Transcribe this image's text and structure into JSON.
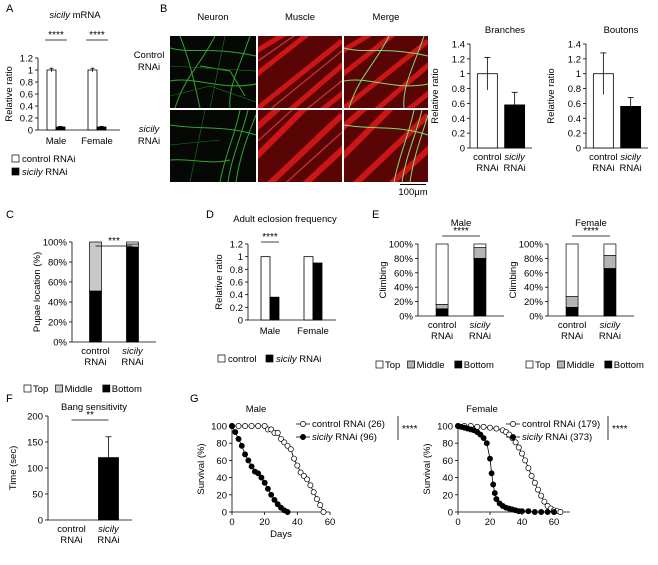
{
  "panel_letters": [
    "A",
    "B",
    "C",
    "D",
    "E",
    "F",
    "G"
  ],
  "micrograph": {
    "columns": [
      "Neuron",
      "Muscle",
      "Merge"
    ],
    "rows": [
      {
        "line1": "Control",
        "line2": "RNAi",
        "italic": false
      },
      {
        "line1": "sicily",
        "line2": "RNAi",
        "italic": true
      }
    ],
    "scale_bar": "100μm",
    "colors": {
      "neuron": "#1f7a1f",
      "muscle": "#c81414",
      "background": "#000000"
    }
  },
  "chart_data": [
    {
      "id": "A",
      "type": "bar",
      "title": "sicily mRNA",
      "ylabel": "Relative ratio",
      "ylim": [
        0,
        1.2
      ],
      "yticks": [
        "0",
        "0.2",
        "0.4",
        "0.6",
        "0.8",
        "1",
        "1.2"
      ],
      "categories": [
        "Male",
        "Female"
      ],
      "series": [
        {
          "name": "control RNAi",
          "color": "#ffffff",
          "values": [
            1.0,
            1.0
          ],
          "errors": [
            0.03,
            0.03
          ]
        },
        {
          "name": "sicily RNAi",
          "color": "#000000",
          "values": [
            0.05,
            0.05
          ],
          "errors": [
            0.01,
            0.01
          ]
        }
      ],
      "significance": [
        "****",
        "****"
      ],
      "legend": [
        "control RNAi",
        "sicily RNAi"
      ]
    },
    {
      "id": "B1",
      "type": "bar",
      "title": "Branches",
      "ylabel": "Relative ratio",
      "ylim": [
        0,
        1.4
      ],
      "yticks": [
        "0",
        "0.2",
        "0.4",
        "0.6",
        "0.8",
        "1",
        "1.2",
        "1.4"
      ],
      "categories": [
        "control|RNAi",
        "sicily|RNAi"
      ],
      "values": [
        1.0,
        0.58
      ],
      "errors": [
        0.22,
        0.17
      ],
      "colors": [
        "#ffffff",
        "#000000"
      ]
    },
    {
      "id": "B2",
      "type": "bar",
      "title": "Boutons",
      "ylabel": "Relative ratio",
      "ylim": [
        0,
        1.4
      ],
      "yticks": [
        "0",
        "0.2",
        "0.4",
        "0.6",
        "0.8",
        "1",
        "1.2",
        "1.4"
      ],
      "categories": [
        "control|RNAi",
        "sicily|RNAi"
      ],
      "values": [
        1.0,
        0.56
      ],
      "errors": [
        0.28,
        0.12
      ],
      "colors": [
        "#ffffff",
        "#000000"
      ]
    },
    {
      "id": "C",
      "type": "bar",
      "stacked": true,
      "ylabel": "Pupae location (%)",
      "ylim": [
        0,
        100
      ],
      "yticks": [
        "0%",
        "20%",
        "40%",
        "60%",
        "80%",
        "100%"
      ],
      "categories": [
        "control|RNAi",
        "sicily|RNAi"
      ],
      "series": [
        {
          "name": "Bottom",
          "color": "#000000",
          "values": [
            51,
            95
          ]
        },
        {
          "name": "Middle",
          "color": "#c8c8c8",
          "values": [
            49,
            3
          ]
        },
        {
          "name": "Top",
          "color": "#ffffff",
          "values": [
            0,
            2
          ]
        }
      ],
      "significance": "***",
      "legend": [
        "Top",
        "Middle",
        "Bottom"
      ]
    },
    {
      "id": "D",
      "type": "bar",
      "title": "Adult eclosion frequency",
      "ylabel": "Relative ratio",
      "ylim": [
        0,
        1.2
      ],
      "yticks": [
        "0",
        "0.2",
        "0.4",
        "0.6",
        "0.8",
        "1",
        "1.2"
      ],
      "categories": [
        "Male",
        "Female"
      ],
      "series": [
        {
          "name": "control",
          "color": "#ffffff",
          "values": [
            1.0,
            1.0
          ]
        },
        {
          "name": "sicily RNAi",
          "color": "#000000",
          "values": [
            0.36,
            0.9
          ]
        }
      ],
      "significance": [
        "****"
      ],
      "legend": [
        "control",
        "sicily RNAi"
      ]
    },
    {
      "id": "E1",
      "type": "bar",
      "stacked": true,
      "title": "Male",
      "ylabel": "Climbing",
      "ylim": [
        0,
        100
      ],
      "yticks": [
        "0%",
        "20%",
        "40%",
        "60%",
        "80%",
        "100%"
      ],
      "categories": [
        "control|RNAi",
        "sicily|RNAi"
      ],
      "series": [
        {
          "name": "Bottom",
          "color": "#000000",
          "values": [
            10,
            80
          ]
        },
        {
          "name": "Middle",
          "color": "#b4b4b4",
          "values": [
            6,
            15
          ]
        },
        {
          "name": "Top",
          "color": "#ffffff",
          "values": [
            84,
            5
          ]
        }
      ],
      "significance": "****",
      "legend": [
        "Top",
        "Middle",
        "Bottom"
      ]
    },
    {
      "id": "E2",
      "type": "bar",
      "stacked": true,
      "title": "Female",
      "ylabel": "Climbing",
      "ylim": [
        0,
        100
      ],
      "yticks": [
        "0%",
        "20%",
        "40%",
        "60%",
        "80%",
        "100%"
      ],
      "categories": [
        "control|RNAi",
        "sicily|RNAi"
      ],
      "series": [
        {
          "name": "Bottom",
          "color": "#000000",
          "values": [
            12,
            66
          ]
        },
        {
          "name": "Middle",
          "color": "#b4b4b4",
          "values": [
            15,
            18
          ]
        },
        {
          "name": "Top",
          "color": "#ffffff",
          "values": [
            73,
            16
          ]
        }
      ],
      "significance": "****",
      "legend": [
        "Top",
        "Middle",
        "Bottom"
      ]
    },
    {
      "id": "F",
      "type": "bar",
      "title": "Bang sensitivity",
      "ylabel": "Time (sec)",
      "ylim": [
        0,
        200
      ],
      "yticks": [
        "0",
        "50",
        "100",
        "150",
        "200"
      ],
      "categories": [
        "control|RNAi",
        "sicily|RNAi"
      ],
      "values": [
        0,
        120
      ],
      "errors": [
        0,
        40
      ],
      "colors": [
        "#ffffff",
        "#000000"
      ],
      "significance": "**"
    },
    {
      "id": "G1",
      "type": "line",
      "title": "Male",
      "xlabel": "Days",
      "ylabel": "Survival (%)",
      "xlim": [
        0,
        60
      ],
      "ylim": [
        0,
        100
      ],
      "xticks": [
        "0",
        "20",
        "40",
        "60"
      ],
      "yticks": [
        "0",
        "20",
        "40",
        "60",
        "80",
        "100"
      ],
      "series": [
        {
          "name": "control RNAi (26)",
          "marker": "open",
          "x": [
            0,
            4,
            8,
            12,
            16,
            20,
            22,
            24,
            26,
            28,
            30,
            32,
            34,
            36,
            38,
            40,
            42,
            44,
            46,
            48,
            50,
            52,
            54,
            56
          ],
          "y": [
            100,
            100,
            100,
            100,
            100,
            100,
            96,
            96,
            92,
            92,
            85,
            81,
            77,
            73,
            62,
            54,
            46,
            42,
            38,
            31,
            23,
            15,
            8,
            0
          ]
        },
        {
          "name": "sicily RNAi (96)",
          "marker": "filled",
          "x": [
            0,
            2,
            4,
            6,
            8,
            10,
            12,
            14,
            16,
            18,
            20,
            22,
            24,
            26,
            28,
            30,
            32,
            34
          ],
          "y": [
            100,
            93,
            85,
            77,
            67,
            60,
            53,
            47,
            45,
            40,
            34,
            27,
            20,
            14,
            9,
            5,
            2,
            0
          ]
        }
      ],
      "significance": "****"
    },
    {
      "id": "G2",
      "type": "line",
      "title": "Female",
      "ylabel": "Survival (%)",
      "xlim": [
        0,
        70
      ],
      "ylim": [
        0,
        100
      ],
      "xticks": [
        "0",
        "20",
        "40",
        "60"
      ],
      "yticks": [
        "0",
        "20",
        "40",
        "60",
        "80",
        "100"
      ],
      "series": [
        {
          "name": "control RNAi (179)",
          "marker": "open",
          "x": [
            0,
            4,
            8,
            12,
            16,
            20,
            24,
            28,
            30,
            32,
            34,
            36,
            38,
            40,
            42,
            44,
            46,
            48,
            50,
            52,
            54,
            56,
            58,
            60,
            62,
            64
          ],
          "y": [
            100,
            100,
            100,
            99,
            99,
            98,
            97,
            95,
            93,
            90,
            86,
            81,
            75,
            68,
            60,
            51,
            42,
            34,
            26,
            19,
            12,
            7,
            4,
            2,
            1,
            0
          ]
        },
        {
          "name": "sicily RNAi (373)",
          "marker": "filled",
          "x": [
            0,
            2,
            4,
            6,
            8,
            10,
            12,
            14,
            16,
            18,
            20,
            21,
            22,
            23,
            24,
            26,
            28,
            30,
            32,
            34,
            36,
            38,
            40,
            44,
            48,
            52,
            56,
            60
          ],
          "y": [
            100,
            99,
            98,
            97,
            96,
            95,
            93,
            90,
            86,
            80,
            62,
            45,
            32,
            22,
            15,
            10,
            7,
            5,
            4,
            3,
            2,
            1,
            1,
            1,
            0,
            0,
            0,
            0
          ]
        }
      ],
      "significance": "****"
    }
  ]
}
